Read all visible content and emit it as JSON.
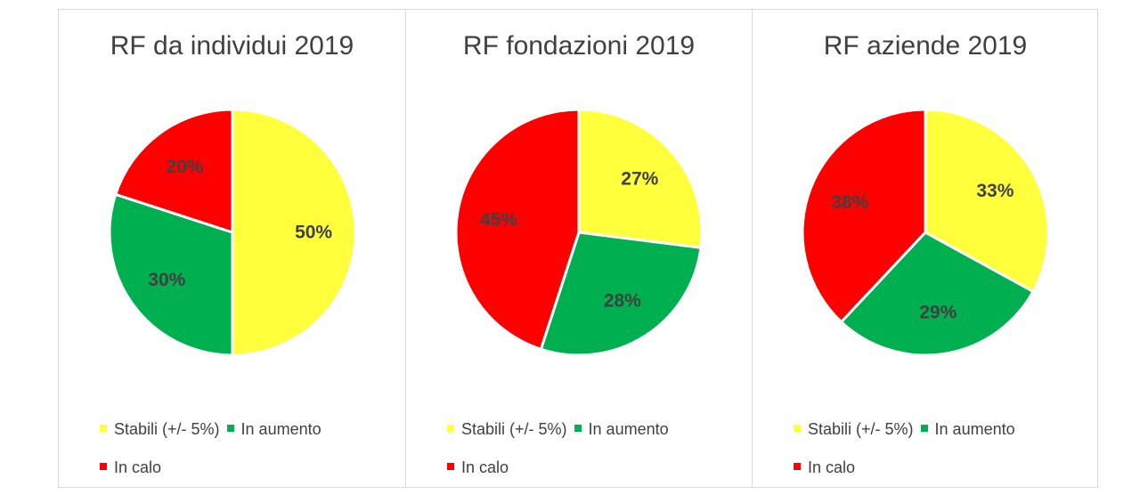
{
  "chart_data": [
    {
      "type": "pie",
      "title": "RF da individui 2019",
      "slices": [
        {
          "label": "Stabili (+/- 5%)",
          "value": 50,
          "display": "50%",
          "color": "#FFFF3B"
        },
        {
          "label": "In aumento",
          "value": 30,
          "display": "30%",
          "color": "#00B050"
        },
        {
          "label": "In calo",
          "value": 20,
          "display": "20%",
          "color": "#FF0000"
        }
      ],
      "legend": "bottom"
    },
    {
      "type": "pie",
      "title": "RF fondazioni 2019",
      "slices": [
        {
          "label": "Stabili (+/- 5%)",
          "value": 27,
          "display": "27%",
          "color": "#FFFF3B"
        },
        {
          "label": "In aumento",
          "value": 28,
          "display": "28%",
          "color": "#00B050"
        },
        {
          "label": "In calo",
          "value": 45,
          "display": "45%",
          "color": "#FF0000"
        }
      ],
      "legend": "bottom"
    },
    {
      "type": "pie",
      "title": "RF aziende 2019",
      "slices": [
        {
          "label": "Stabili (+/- 5%)",
          "value": 33,
          "display": "33%",
          "color": "#FFFF3B"
        },
        {
          "label": "In aumento",
          "value": 29,
          "display": "29%",
          "color": "#00B050"
        },
        {
          "label": "In calo",
          "value": 38,
          "display": "38%",
          "color": "#FF0000"
        }
      ],
      "legend": "bottom"
    }
  ]
}
